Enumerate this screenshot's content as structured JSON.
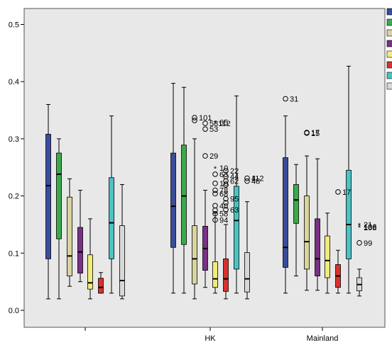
{
  "chart_data": {
    "type": "box",
    "ylim": [
      -0.02,
      0.53
    ],
    "y_ticks": [
      0.0,
      0.1,
      0.2,
      0.3,
      0.4,
      0.5
    ],
    "y_tick_labels": [
      "0.0",
      "0.1",
      "0.2",
      "0.3",
      "0.4",
      "0.5"
    ],
    "categories": [
      "",
      "HK",
      "Mainland"
    ],
    "series": [
      {
        "color": "#3a4d9c"
      },
      {
        "color": "#3aaa4a"
      },
      {
        "color": "#d9d4a0"
      },
      {
        "color": "#7b2f86"
      },
      {
        "color": "#f2ec7a"
      },
      {
        "color": "#d9322b"
      },
      {
        "color": "#4cc3c3"
      },
      {
        "color": "#d8d8d8"
      }
    ],
    "groups": [
      {
        "category": "",
        "boxes": [
          {
            "min": 0.02,
            "q1": 0.09,
            "median": 0.218,
            "q3": 0.308,
            "max": 0.36
          },
          {
            "min": 0.02,
            "q1": 0.125,
            "median": 0.238,
            "q3": 0.275,
            "max": 0.3
          },
          {
            "min": 0.042,
            "q1": 0.06,
            "median": 0.095,
            "q3": 0.198,
            "max": 0.23
          },
          {
            "min": 0.05,
            "q1": 0.065,
            "median": 0.102,
            "q3": 0.145,
            "max": 0.21
          },
          {
            "min": 0.02,
            "q1": 0.037,
            "median": 0.048,
            "q3": 0.097,
            "max": 0.16
          },
          {
            "min": 0.03,
            "q1": 0.03,
            "median": 0.04,
            "q3": 0.056,
            "max": 0.066
          },
          {
            "min": 0.03,
            "q1": 0.09,
            "median": 0.153,
            "q3": 0.232,
            "max": 0.34
          },
          {
            "min": 0.02,
            "q1": 0.025,
            "median": 0.052,
            "q3": 0.148,
            "max": 0.22
          }
        ],
        "outliers": []
      },
      {
        "category": "HK",
        "boxes": [
          {
            "min": 0.03,
            "q1": 0.11,
            "median": 0.182,
            "q3": 0.275,
            "max": 0.397
          },
          {
            "min": 0.03,
            "q1": 0.115,
            "median": 0.2,
            "q3": 0.289,
            "max": 0.39
          },
          {
            "min": 0.02,
            "q1": 0.046,
            "median": 0.09,
            "q3": 0.148,
            "max": 0.3
          },
          {
            "min": 0.04,
            "q1": 0.07,
            "median": 0.108,
            "q3": 0.147,
            "max": 0.21
          },
          {
            "min": 0.03,
            "q1": 0.04,
            "median": 0.055,
            "q3": 0.085,
            "max": 0.17
          },
          {
            "min": 0.02,
            "q1": 0.033,
            "median": 0.055,
            "q3": 0.09,
            "max": 0.15
          },
          {
            "min": 0.03,
            "q1": 0.072,
            "median": 0.157,
            "q3": 0.217,
            "max": 0.375
          },
          {
            "min": 0.02,
            "q1": 0.032,
            "median": 0.055,
            "q3": 0.101,
            "max": 0.19
          }
        ],
        "outliers": [
          {
            "box": 2,
            "y": 0.337,
            "symbol": "o",
            "label": "101"
          },
          {
            "box": 2,
            "y": 0.332,
            "symbol": "o",
            "label": ""
          },
          {
            "box": 3,
            "y": 0.327,
            "symbol": "o",
            "label": "58112"
          },
          {
            "box": 3,
            "y": 0.317,
            "symbol": "o",
            "label": "53"
          },
          {
            "box": 4,
            "y": 0.329,
            "symbol": "*",
            "label": "65"
          },
          {
            "box": 3,
            "y": 0.27,
            "symbol": "o",
            "label": "29"
          },
          {
            "box": 4,
            "y": 0.249,
            "symbol": "*",
            "label": "10"
          },
          {
            "box": 5,
            "y": 0.244,
            "symbol": "o",
            "label": "22"
          },
          {
            "box": 4,
            "y": 0.238,
            "symbol": "o",
            "label": "63"
          },
          {
            "box": 5,
            "y": 0.234,
            "symbol": "o",
            "label": "44"
          },
          {
            "box": 4,
            "y": 0.222,
            "symbol": "o",
            "label": "10"
          },
          {
            "box": 5,
            "y": 0.226,
            "symbol": "o",
            "label": "62"
          },
          {
            "box": 7,
            "y": 0.231,
            "symbol": "o",
            "label": "4"
          },
          {
            "box": 7,
            "y": 0.226,
            "symbol": "o",
            "label": "48"
          },
          {
            "box": 7,
            "y": 0.231,
            "symbol": "",
            "label": "112"
          },
          {
            "box": 4,
            "y": 0.21,
            "symbol": "o",
            "label": "78"
          },
          {
            "box": 5,
            "y": 0.219,
            "symbol": "o",
            "label": ""
          },
          {
            "box": 4,
            "y": 0.204,
            "symbol": "o",
            "label": "68"
          },
          {
            "box": 5,
            "y": 0.195,
            "symbol": "o",
            "label": "95"
          },
          {
            "box": 4,
            "y": 0.183,
            "symbol": "o",
            "label": "40"
          },
          {
            "box": 5,
            "y": 0.188,
            "symbol": "o",
            "label": ""
          },
          {
            "box": 4,
            "y": 0.175,
            "symbol": "o",
            "label": ""
          },
          {
            "box": 4,
            "y": 0.169,
            "symbol": "o",
            "label": "58"
          },
          {
            "box": 5,
            "y": 0.176,
            "symbol": "o",
            "label": "63"
          },
          {
            "box": 4,
            "y": 0.158,
            "symbol": "o",
            "label": "94"
          }
        ]
      },
      {
        "category": "Mainland",
        "boxes": [
          {
            "min": 0.03,
            "q1": 0.075,
            "median": 0.11,
            "q3": 0.267,
            "max": 0.34
          },
          {
            "min": 0.06,
            "q1": 0.152,
            "median": 0.193,
            "q3": 0.22,
            "max": 0.255
          },
          {
            "min": 0.035,
            "q1": 0.072,
            "median": 0.12,
            "q3": 0.2,
            "max": 0.27
          },
          {
            "min": 0.035,
            "q1": 0.06,
            "median": 0.09,
            "q3": 0.16,
            "max": 0.265
          },
          {
            "min": 0.03,
            "q1": 0.057,
            "median": 0.087,
            "q3": 0.13,
            "max": 0.17
          },
          {
            "min": 0.03,
            "q1": 0.04,
            "median": 0.06,
            "q3": 0.08,
            "max": 0.105
          },
          {
            "min": 0.03,
            "q1": 0.09,
            "median": 0.15,
            "q3": 0.245,
            "max": 0.427
          },
          {
            "min": 0.025,
            "q1": 0.034,
            "median": 0.045,
            "q3": 0.057,
            "max": 0.072
          }
        ],
        "outliers": [
          {
            "box": 0,
            "y": 0.37,
            "symbol": "o",
            "label": "31"
          },
          {
            "box": 2,
            "y": 0.31,
            "symbol": "o",
            "label": "15"
          },
          {
            "box": 2,
            "y": 0.311,
            "symbol": "o",
            "label": "17"
          },
          {
            "box": 5,
            "y": 0.207,
            "symbol": "o",
            "label": "17"
          },
          {
            "box": 7,
            "y": 0.15,
            "symbol": "*",
            "label": "21"
          },
          {
            "box": 7,
            "y": 0.146,
            "symbol": "*",
            "label": "106"
          },
          {
            "box": 7,
            "y": 0.145,
            "symbol": "",
            "label": "108"
          },
          {
            "box": 7,
            "y": 0.118,
            "symbol": "o",
            "label": "99"
          }
        ]
      }
    ]
  }
}
